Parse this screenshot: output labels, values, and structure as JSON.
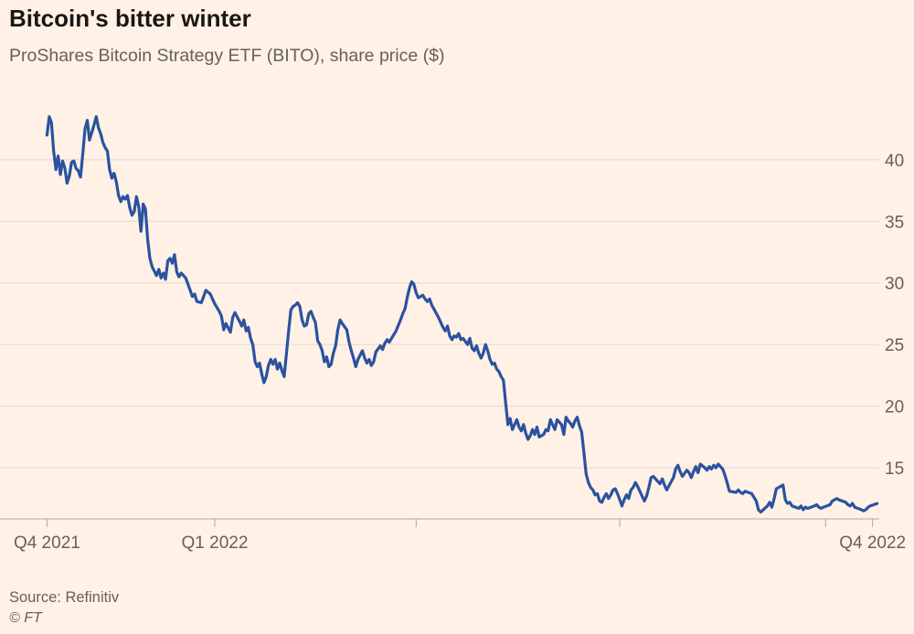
{
  "header": {
    "title": "Bitcoin's bitter winter",
    "subtitle": "ProShares Bitcoin Strategy ETF (BITO), share price ($)"
  },
  "footer": {
    "source": "Source: Refinitiv",
    "credit": "© FT"
  },
  "colors": {
    "background": "#fff1e5",
    "line": "#2a52a0",
    "gridline": "#e6d8ca",
    "axis": "#b1a79b",
    "tick_label": "#66605b",
    "title_text": "#1a1613",
    "subtitle_text": "#66605b"
  },
  "chart_data": {
    "type": "line",
    "title": "Bitcoin's bitter winter",
    "subtitle": "ProShares Bitcoin Strategy ETF (BITO), share price ($)",
    "xlabel": "",
    "ylabel": "share price ($)",
    "series_name": "BITO",
    "grid": "horizontal",
    "legend": "none",
    "x_domain": [
      "2021-09-27",
      "2022-10-25"
    ],
    "y_axis": {
      "side": "right",
      "ticks": [
        15,
        20,
        25,
        30,
        35,
        40
      ],
      "range": [
        10.85,
        45.7
      ]
    },
    "x_ticks": [
      {
        "date": "2021-10-18",
        "label": "Q4 2021"
      },
      {
        "date": "2022-01-01",
        "label": "Q1 2022"
      },
      {
        "date": "2022-04-01",
        "label": ""
      },
      {
        "date": "2022-07-01",
        "label": ""
      },
      {
        "date": "2022-10-01",
        "label": ""
      },
      {
        "date": "2022-10-22",
        "label": "Q4 2022"
      }
    ],
    "points": [
      [
        "2021-10-18",
        42.0
      ],
      [
        "2021-10-19",
        43.5
      ],
      [
        "2021-10-20",
        43.0
      ],
      [
        "2021-10-21",
        40.7
      ],
      [
        "2021-10-22",
        39.2
      ],
      [
        "2021-10-23",
        40.3
      ],
      [
        "2021-10-24",
        38.8
      ],
      [
        "2021-10-25",
        39.9
      ],
      [
        "2021-10-26",
        39.3
      ],
      [
        "2021-10-27",
        38.1
      ],
      [
        "2021-10-28",
        38.7
      ],
      [
        "2021-10-29",
        39.8
      ],
      [
        "2021-10-30",
        39.9
      ],
      [
        "2021-10-31",
        39.3
      ],
      [
        "2021-11-01",
        39.1
      ],
      [
        "2021-11-02",
        38.6
      ],
      [
        "2021-11-03",
        40.5
      ],
      [
        "2021-11-04",
        42.5
      ],
      [
        "2021-11-05",
        43.2
      ],
      [
        "2021-11-06",
        41.6
      ],
      [
        "2021-11-08",
        42.8
      ],
      [
        "2021-11-09",
        43.5
      ],
      [
        "2021-11-10",
        42.6
      ],
      [
        "2021-11-11",
        42.1
      ],
      [
        "2021-11-12",
        41.4
      ],
      [
        "2021-11-13",
        41.0
      ],
      [
        "2021-11-14",
        40.7
      ],
      [
        "2021-11-15",
        39.2
      ],
      [
        "2021-11-16",
        38.5
      ],
      [
        "2021-11-17",
        38.9
      ],
      [
        "2021-11-18",
        38.2
      ],
      [
        "2021-11-19",
        37.1
      ],
      [
        "2021-11-20",
        36.6
      ],
      [
        "2021-11-21",
        37.0
      ],
      [
        "2021-11-22",
        36.8
      ],
      [
        "2021-11-23",
        37.1
      ],
      [
        "2021-11-24",
        36.1
      ],
      [
        "2021-11-25",
        35.5
      ],
      [
        "2021-11-26",
        35.8
      ],
      [
        "2021-11-27",
        37.0
      ],
      [
        "2021-11-28",
        36.2
      ],
      [
        "2021-11-29",
        34.2
      ],
      [
        "2021-11-30",
        36.4
      ],
      [
        "2021-12-01",
        36.0
      ],
      [
        "2021-12-02",
        33.5
      ],
      [
        "2021-12-03",
        32.0
      ],
      [
        "2021-12-04",
        31.3
      ],
      [
        "2021-12-06",
        30.6
      ],
      [
        "2021-12-07",
        31.1
      ],
      [
        "2021-12-08",
        30.4
      ],
      [
        "2021-12-09",
        30.8
      ],
      [
        "2021-12-10",
        30.3
      ],
      [
        "2021-12-11",
        31.8
      ],
      [
        "2021-12-12",
        32.0
      ],
      [
        "2021-12-13",
        31.6
      ],
      [
        "2021-12-14",
        32.3
      ],
      [
        "2021-12-15",
        30.9
      ],
      [
        "2021-12-16",
        30.5
      ],
      [
        "2021-12-17",
        30.8
      ],
      [
        "2021-12-19",
        30.4
      ],
      [
        "2021-12-21",
        29.4
      ],
      [
        "2021-12-22",
        28.9
      ],
      [
        "2021-12-23",
        29.1
      ],
      [
        "2021-12-24",
        28.5
      ],
      [
        "2021-12-26",
        28.4
      ],
      [
        "2021-12-27",
        28.9
      ],
      [
        "2021-12-28",
        29.4
      ],
      [
        "2021-12-30",
        29.1
      ],
      [
        "2021-12-31",
        28.7
      ],
      [
        "2022-01-01",
        28.3
      ],
      [
        "2022-01-03",
        27.7
      ],
      [
        "2022-01-04",
        27.3
      ],
      [
        "2022-01-05",
        26.2
      ],
      [
        "2022-01-06",
        26.7
      ],
      [
        "2022-01-08",
        26.0
      ],
      [
        "2022-01-09",
        27.2
      ],
      [
        "2022-01-10",
        27.6
      ],
      [
        "2022-01-12",
        26.9
      ],
      [
        "2022-01-13",
        26.5
      ],
      [
        "2022-01-14",
        27.0
      ],
      [
        "2022-01-15",
        26.1
      ],
      [
        "2022-01-16",
        26.4
      ],
      [
        "2022-01-17",
        25.5
      ],
      [
        "2022-01-18",
        25.0
      ],
      [
        "2022-01-19",
        23.6
      ],
      [
        "2022-01-20",
        23.2
      ],
      [
        "2022-01-21",
        23.5
      ],
      [
        "2022-01-22",
        22.6
      ],
      [
        "2022-01-23",
        21.9
      ],
      [
        "2022-01-24",
        22.4
      ],
      [
        "2022-01-25",
        23.3
      ],
      [
        "2022-01-26",
        23.8
      ],
      [
        "2022-01-27",
        23.4
      ],
      [
        "2022-01-28",
        23.8
      ],
      [
        "2022-01-29",
        23.0
      ],
      [
        "2022-01-30",
        23.5
      ],
      [
        "2022-01-31",
        22.9
      ],
      [
        "2022-02-01",
        22.4
      ],
      [
        "2022-02-02",
        24.2
      ],
      [
        "2022-02-03",
        26.1
      ],
      [
        "2022-02-04",
        27.8
      ],
      [
        "2022-02-05",
        28.1
      ],
      [
        "2022-02-06",
        28.2
      ],
      [
        "2022-02-07",
        28.4
      ],
      [
        "2022-02-08",
        28.1
      ],
      [
        "2022-02-09",
        27.0
      ],
      [
        "2022-02-10",
        26.5
      ],
      [
        "2022-02-11",
        26.6
      ],
      [
        "2022-02-12",
        27.5
      ],
      [
        "2022-02-13",
        27.7
      ],
      [
        "2022-02-14",
        27.2
      ],
      [
        "2022-02-15",
        26.8
      ],
      [
        "2022-02-16",
        25.3
      ],
      [
        "2022-02-17",
        25.0
      ],
      [
        "2022-02-18",
        24.5
      ],
      [
        "2022-02-19",
        23.6
      ],
      [
        "2022-02-20",
        24.0
      ],
      [
        "2022-02-21",
        23.2
      ],
      [
        "2022-02-22",
        23.4
      ],
      [
        "2022-02-23",
        24.3
      ],
      [
        "2022-02-24",
        24.9
      ],
      [
        "2022-02-25",
        26.2
      ],
      [
        "2022-02-26",
        27.0
      ],
      [
        "2022-02-27",
        26.7
      ],
      [
        "2022-03-01",
        26.2
      ],
      [
        "2022-03-02",
        25.2
      ],
      [
        "2022-03-03",
        24.5
      ],
      [
        "2022-03-04",
        23.9
      ],
      [
        "2022-03-05",
        23.2
      ],
      [
        "2022-03-06",
        23.8
      ],
      [
        "2022-03-08",
        24.5
      ],
      [
        "2022-03-09",
        23.9
      ],
      [
        "2022-03-10",
        23.5
      ],
      [
        "2022-03-11",
        23.8
      ],
      [
        "2022-03-12",
        23.3
      ],
      [
        "2022-03-13",
        23.6
      ],
      [
        "2022-03-14",
        24.4
      ],
      [
        "2022-03-16",
        24.9
      ],
      [
        "2022-03-17",
        24.6
      ],
      [
        "2022-03-18",
        25.1
      ],
      [
        "2022-03-19",
        25.4
      ],
      [
        "2022-03-20",
        25.2
      ],
      [
        "2022-03-22",
        25.8
      ],
      [
        "2022-03-23",
        26.1
      ],
      [
        "2022-03-25",
        27.0
      ],
      [
        "2022-03-26",
        27.5
      ],
      [
        "2022-03-27",
        27.9
      ],
      [
        "2022-03-28",
        28.8
      ],
      [
        "2022-03-29",
        29.6
      ],
      [
        "2022-03-30",
        30.1
      ],
      [
        "2022-03-31",
        29.9
      ],
      [
        "2022-04-01",
        29.2
      ],
      [
        "2022-04-02",
        28.8
      ],
      [
        "2022-04-04",
        29.0
      ],
      [
        "2022-04-05",
        28.7
      ],
      [
        "2022-04-06",
        28.5
      ],
      [
        "2022-04-07",
        28.7
      ],
      [
        "2022-04-08",
        28.2
      ],
      [
        "2022-04-11",
        27.2
      ],
      [
        "2022-04-12",
        26.8
      ],
      [
        "2022-04-13",
        26.4
      ],
      [
        "2022-04-14",
        26.1
      ],
      [
        "2022-04-15",
        26.5
      ],
      [
        "2022-04-16",
        25.7
      ],
      [
        "2022-04-17",
        25.4
      ],
      [
        "2022-04-18",
        25.7
      ],
      [
        "2022-04-19",
        25.6
      ],
      [
        "2022-04-20",
        25.9
      ],
      [
        "2022-04-21",
        25.4
      ],
      [
        "2022-04-22",
        25.5
      ],
      [
        "2022-04-24",
        25.0
      ],
      [
        "2022-04-25",
        25.5
      ],
      [
        "2022-04-26",
        24.7
      ],
      [
        "2022-04-27",
        24.5
      ],
      [
        "2022-04-28",
        24.9
      ],
      [
        "2022-04-29",
        24.3
      ],
      [
        "2022-04-30",
        23.9
      ],
      [
        "2022-05-01",
        24.3
      ],
      [
        "2022-05-02",
        25.0
      ],
      [
        "2022-05-03",
        24.5
      ],
      [
        "2022-05-04",
        23.8
      ],
      [
        "2022-05-05",
        23.4
      ],
      [
        "2022-05-06",
        23.5
      ],
      [
        "2022-05-07",
        23.0
      ],
      [
        "2022-05-08",
        22.8
      ],
      [
        "2022-05-09",
        22.4
      ],
      [
        "2022-05-10",
        22.1
      ],
      [
        "2022-05-11",
        20.3
      ],
      [
        "2022-05-12",
        18.5
      ],
      [
        "2022-05-13",
        19.0
      ],
      [
        "2022-05-14",
        18.1
      ],
      [
        "2022-05-16",
        18.9
      ],
      [
        "2022-05-17",
        18.3
      ],
      [
        "2022-05-18",
        18.0
      ],
      [
        "2022-05-19",
        18.5
      ],
      [
        "2022-05-20",
        17.8
      ],
      [
        "2022-05-21",
        17.3
      ],
      [
        "2022-05-22",
        17.6
      ],
      [
        "2022-05-23",
        18.1
      ],
      [
        "2022-05-24",
        17.7
      ],
      [
        "2022-05-25",
        18.3
      ],
      [
        "2022-05-26",
        17.5
      ],
      [
        "2022-05-28",
        17.7
      ],
      [
        "2022-05-29",
        18.1
      ],
      [
        "2022-05-30",
        18.0
      ],
      [
        "2022-05-31",
        18.9
      ],
      [
        "2022-06-01",
        18.5
      ],
      [
        "2022-06-02",
        18.1
      ],
      [
        "2022-06-03",
        18.9
      ],
      [
        "2022-06-05",
        18.5
      ],
      [
        "2022-06-06",
        17.7
      ],
      [
        "2022-06-07",
        19.1
      ],
      [
        "2022-06-08",
        18.8
      ],
      [
        "2022-06-09",
        18.6
      ],
      [
        "2022-06-10",
        18.3
      ],
      [
        "2022-06-11",
        18.8
      ],
      [
        "2022-06-12",
        19.1
      ],
      [
        "2022-06-13",
        18.4
      ],
      [
        "2022-06-14",
        17.9
      ],
      [
        "2022-06-15",
        16.2
      ],
      [
        "2022-06-16",
        14.5
      ],
      [
        "2022-06-17",
        13.8
      ],
      [
        "2022-06-18",
        13.4
      ],
      [
        "2022-06-19",
        13.2
      ],
      [
        "2022-06-20",
        12.8
      ],
      [
        "2022-06-21",
        12.9
      ],
      [
        "2022-06-22",
        12.3
      ],
      [
        "2022-06-23",
        12.2
      ],
      [
        "2022-06-24",
        12.6
      ],
      [
        "2022-06-25",
        12.9
      ],
      [
        "2022-06-26",
        12.5
      ],
      [
        "2022-06-27",
        12.8
      ],
      [
        "2022-06-28",
        13.2
      ],
      [
        "2022-06-29",
        13.3
      ],
      [
        "2022-06-30",
        12.9
      ],
      [
        "2022-07-01",
        12.4
      ],
      [
        "2022-07-02",
        11.9
      ],
      [
        "2022-07-03",
        12.4
      ],
      [
        "2022-07-04",
        12.8
      ],
      [
        "2022-07-05",
        12.5
      ],
      [
        "2022-07-06",
        13.2
      ],
      [
        "2022-07-07",
        13.4
      ],
      [
        "2022-07-08",
        13.8
      ],
      [
        "2022-07-09",
        13.5
      ],
      [
        "2022-07-11",
        12.7
      ],
      [
        "2022-07-12",
        12.3
      ],
      [
        "2022-07-13",
        12.7
      ],
      [
        "2022-07-14",
        13.4
      ],
      [
        "2022-07-15",
        14.2
      ],
      [
        "2022-07-16",
        14.3
      ],
      [
        "2022-07-18",
        13.9
      ],
      [
        "2022-07-19",
        13.7
      ],
      [
        "2022-07-20",
        14.1
      ],
      [
        "2022-07-21",
        13.6
      ],
      [
        "2022-07-22",
        13.2
      ],
      [
        "2022-07-25",
        14.2
      ],
      [
        "2022-07-26",
        14.9
      ],
      [
        "2022-07-27",
        15.2
      ],
      [
        "2022-07-28",
        14.7
      ],
      [
        "2022-07-29",
        14.3
      ],
      [
        "2022-07-31",
        14.8
      ],
      [
        "2022-08-01",
        14.6
      ],
      [
        "2022-08-02",
        14.2
      ],
      [
        "2022-08-03",
        14.7
      ],
      [
        "2022-08-04",
        15.1
      ],
      [
        "2022-08-05",
        14.6
      ],
      [
        "2022-08-06",
        15.3
      ],
      [
        "2022-08-08",
        15.0
      ],
      [
        "2022-08-09",
        14.8
      ],
      [
        "2022-08-10",
        15.1
      ],
      [
        "2022-08-11",
        14.9
      ],
      [
        "2022-08-12",
        15.2
      ],
      [
        "2022-08-13",
        15.0
      ],
      [
        "2022-08-14",
        15.3
      ],
      [
        "2022-08-15",
        15.1
      ],
      [
        "2022-08-16",
        14.9
      ],
      [
        "2022-08-17",
        14.4
      ],
      [
        "2022-08-18",
        13.8
      ],
      [
        "2022-08-19",
        13.1
      ],
      [
        "2022-08-22",
        13.0
      ],
      [
        "2022-08-23",
        13.2
      ],
      [
        "2022-08-24",
        13.0
      ],
      [
        "2022-08-25",
        12.9
      ],
      [
        "2022-08-26",
        13.1
      ],
      [
        "2022-08-29",
        12.9
      ],
      [
        "2022-08-30",
        12.6
      ],
      [
        "2022-08-31",
        12.3
      ],
      [
        "2022-09-01",
        11.6
      ],
      [
        "2022-09-02",
        11.4
      ],
      [
        "2022-09-05",
        11.9
      ],
      [
        "2022-09-06",
        12.2
      ],
      [
        "2022-09-07",
        11.8
      ],
      [
        "2022-09-08",
        12.5
      ],
      [
        "2022-09-09",
        13.3
      ],
      [
        "2022-09-12",
        13.6
      ],
      [
        "2022-09-13",
        12.4
      ],
      [
        "2022-09-14",
        12.1
      ],
      [
        "2022-09-15",
        12.2
      ],
      [
        "2022-09-16",
        11.9
      ],
      [
        "2022-09-19",
        11.7
      ],
      [
        "2022-09-20",
        11.9
      ],
      [
        "2022-09-21",
        11.6
      ],
      [
        "2022-09-22",
        11.8
      ],
      [
        "2022-09-23",
        11.7
      ],
      [
        "2022-09-26",
        11.9
      ],
      [
        "2022-09-27",
        12.0
      ],
      [
        "2022-09-28",
        11.8
      ],
      [
        "2022-09-29",
        11.7
      ],
      [
        "2022-09-30",
        11.8
      ],
      [
        "2022-10-03",
        12.0
      ],
      [
        "2022-10-04",
        12.3
      ],
      [
        "2022-10-05",
        12.4
      ],
      [
        "2022-10-06",
        12.5
      ],
      [
        "2022-10-07",
        12.4
      ],
      [
        "2022-10-10",
        12.2
      ],
      [
        "2022-10-11",
        12.0
      ],
      [
        "2022-10-12",
        11.9
      ],
      [
        "2022-10-13",
        12.1
      ],
      [
        "2022-10-14",
        11.8
      ],
      [
        "2022-10-17",
        11.6
      ],
      [
        "2022-10-18",
        11.5
      ],
      [
        "2022-10-19",
        11.6
      ],
      [
        "2022-10-20",
        11.8
      ],
      [
        "2022-10-21",
        11.9
      ],
      [
        "2022-10-24",
        12.1
      ]
    ]
  }
}
